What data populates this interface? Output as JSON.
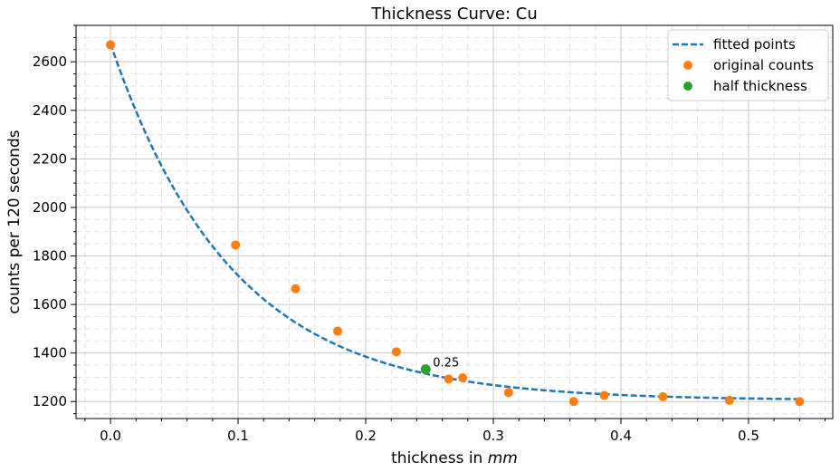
{
  "chart_data": {
    "type": "scatter",
    "title": "Thickness Curve: Cu",
    "xlabel_prefix": "thickness in ",
    "xlabel_italic": "mm",
    "ylabel": "counts per 120 seconds",
    "xlim": [
      -0.027,
      0.566
    ],
    "ylim": [
      1130,
      2750
    ],
    "xticks": [
      0.0,
      0.1,
      0.2,
      0.3,
      0.4,
      0.5
    ],
    "xtick_labels": [
      "0.0",
      "0.1",
      "0.2",
      "0.3",
      "0.4",
      "0.5"
    ],
    "yticks": [
      1200,
      1400,
      1600,
      1800,
      2000,
      2200,
      2400,
      2600
    ],
    "ytick_labels": [
      "1200",
      "1400",
      "1600",
      "1800",
      "2000",
      "2200",
      "2400",
      "2600"
    ],
    "x_minor_step": 0.02,
    "y_minor_step": 50,
    "grid": true,
    "legend_position": "top-right",
    "series": [
      {
        "name": "fitted points",
        "style": "dashed-line",
        "color": "#1f77b4",
        "fit": {
          "a": 1470,
          "b": 10.5,
          "c": 1205,
          "x_start": 0.0,
          "x_end": 0.54
        }
      },
      {
        "name": "original counts",
        "style": "markers",
        "color": "#ff7f0e",
        "x": [
          0.0,
          0.098,
          0.145,
          0.178,
          0.224,
          0.265,
          0.276,
          0.312,
          0.363,
          0.387,
          0.433,
          0.485,
          0.54
        ],
        "y": [
          2670,
          1845,
          1665,
          1490,
          1405,
          1293,
          1298,
          1237,
          1200,
          1225,
          1220,
          1205,
          1200
        ]
      },
      {
        "name": "half thickness",
        "style": "markers",
        "color": "#2ca02c",
        "x": [
          0.247
        ],
        "y": [
          1333
        ]
      }
    ],
    "annotations": [
      {
        "text": "0.25",
        "x": 0.247,
        "y": 1333
      }
    ]
  }
}
